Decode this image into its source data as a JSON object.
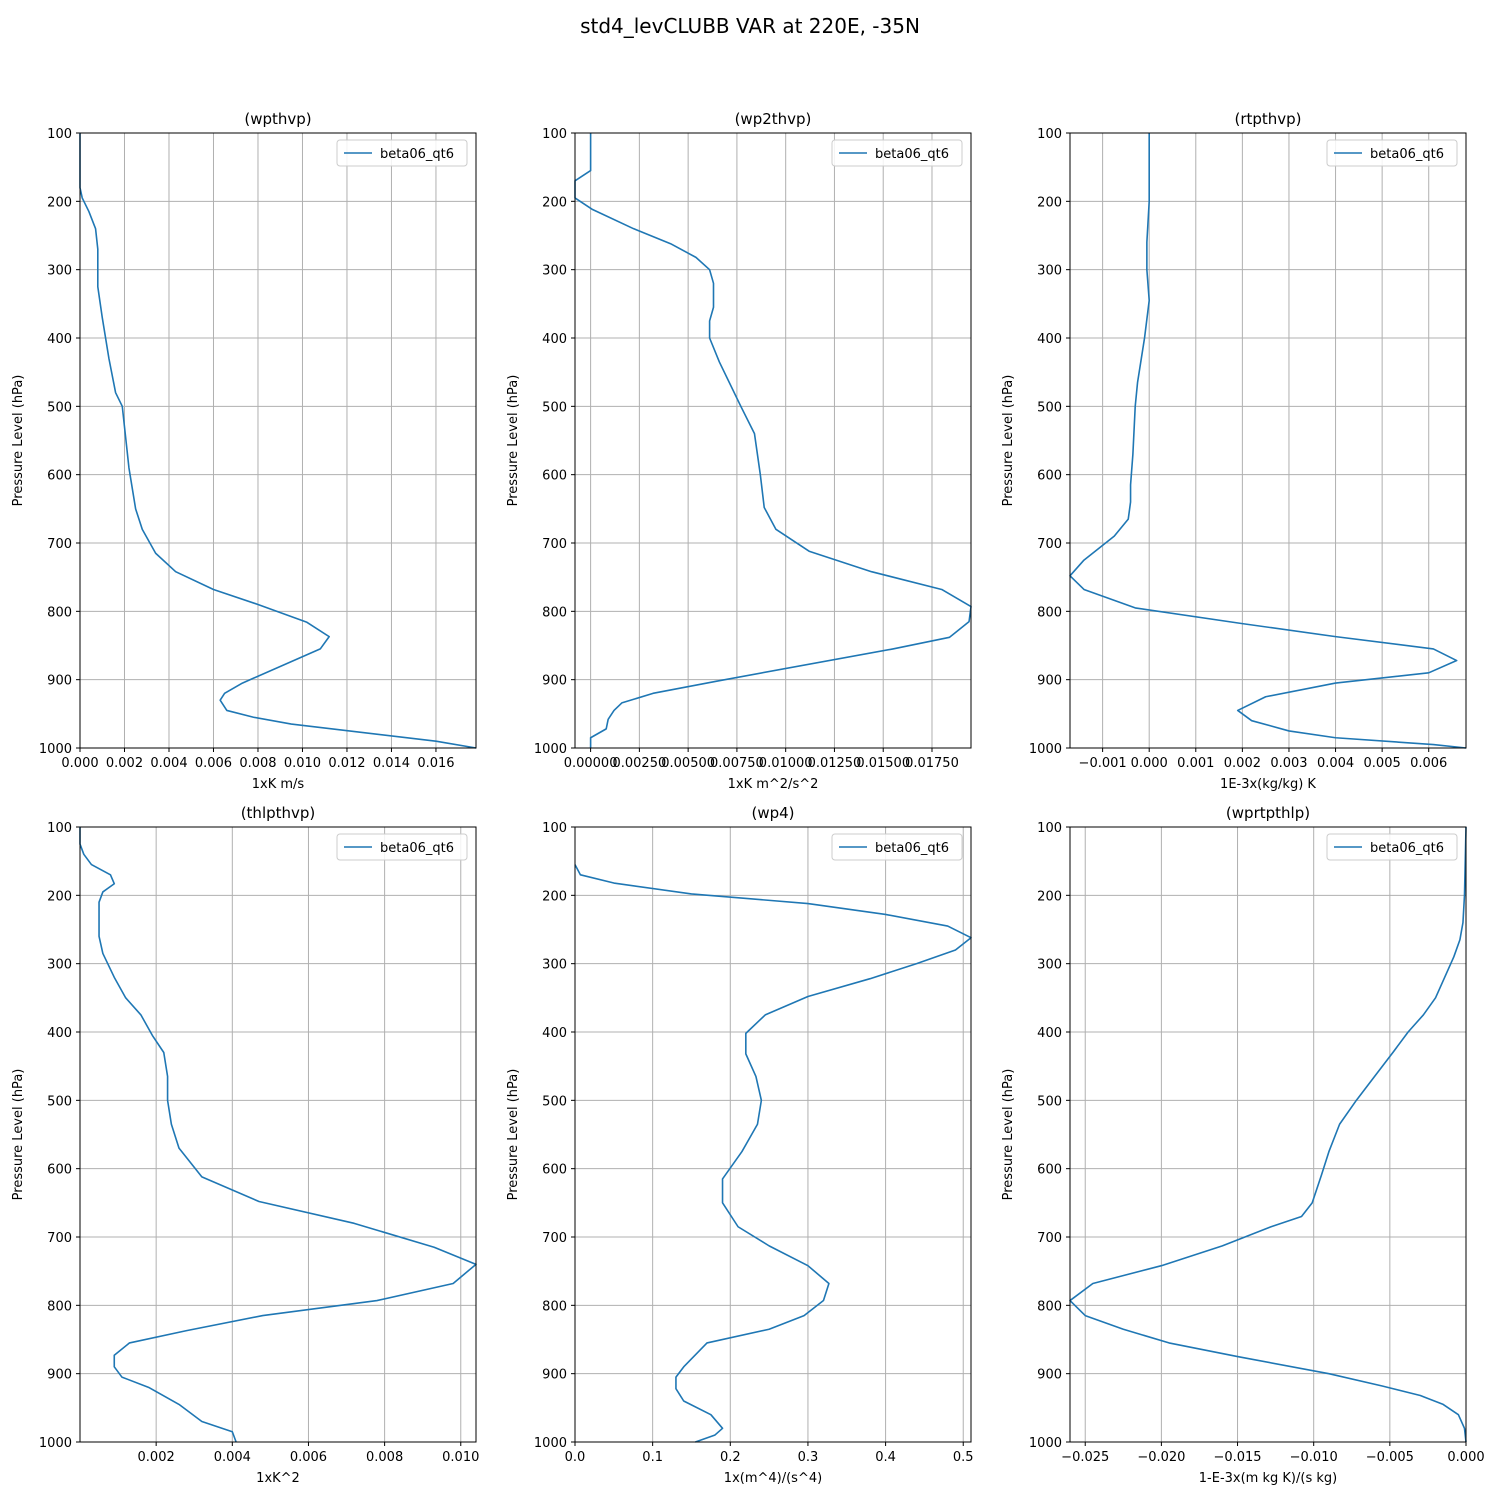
{
  "figure": {
    "title": "std4_levCLUBB VAR at 220E, -35N"
  },
  "style": {
    "line_color": "#1f77b4",
    "grid_color": "#b0b0b0"
  },
  "chart_data": [
    {
      "type": "line",
      "title": "(wpthvp)",
      "xlabel": "1xK m/s",
      "ylabel": "Pressure Level (hPa)",
      "xlim": [
        0,
        0.0178
      ],
      "ylim": [
        1000,
        100
      ],
      "y_inverted": true,
      "grid": true,
      "legend_placement": "top-right",
      "xticks": [
        {
          "v": 0.0,
          "label": "0.000"
        },
        {
          "v": 0.002,
          "label": "0.002"
        },
        {
          "v": 0.004,
          "label": "0.004"
        },
        {
          "v": 0.006,
          "label": "0.006"
        },
        {
          "v": 0.008,
          "label": "0.008"
        },
        {
          "v": 0.01,
          "label": "0.010"
        },
        {
          "v": 0.012,
          "label": "0.012"
        },
        {
          "v": 0.014,
          "label": "0.014"
        },
        {
          "v": 0.016,
          "label": "0.016"
        }
      ],
      "yticks": [
        {
          "v": 100,
          "label": "100"
        },
        {
          "v": 200,
          "label": "200"
        },
        {
          "v": 300,
          "label": "300"
        },
        {
          "v": 400,
          "label": "400"
        },
        {
          "v": 500,
          "label": "500"
        },
        {
          "v": 600,
          "label": "600"
        },
        {
          "v": 700,
          "label": "700"
        },
        {
          "v": 800,
          "label": "800"
        },
        {
          "v": 900,
          "label": "900"
        },
        {
          "v": 1000,
          "label": "1000"
        }
      ],
      "series": [
        {
          "name": "beta06_qt6",
          "x": [
            0.0,
            0.0,
            0.0,
            0.0,
            0.0001,
            0.0004,
            0.0007,
            0.0008,
            0.0008,
            0.0008,
            0.001,
            0.0013,
            0.0016,
            0.0019,
            0.002,
            0.0021,
            0.0022,
            0.0025,
            0.0028,
            0.0034,
            0.0043,
            0.006,
            0.008,
            0.0102,
            0.0112,
            0.0108,
            0.0073,
            0.0065,
            0.0063,
            0.0066,
            0.0078,
            0.0095,
            0.016,
            0.0178
          ],
          "y": [
            100,
            130,
            160,
            180,
            195,
            215,
            240,
            270,
            300,
            325,
            370,
            430,
            480,
            500,
            530,
            560,
            590,
            650,
            680,
            715,
            742,
            768,
            790,
            816,
            837,
            855,
            905,
            920,
            930,
            945,
            955,
            965,
            990,
            1000
          ]
        }
      ]
    },
    {
      "type": "line",
      "title": "(wp2thvp)",
      "xlabel": "1xK m^2/s^2",
      "ylabel": "Pressure Level (hPa)",
      "xlim": [
        -0.0008,
        0.0195
      ],
      "ylim": [
        1000,
        100
      ],
      "y_inverted": true,
      "grid": true,
      "legend_placement": "top-right",
      "xticks": [
        {
          "v": 0.0,
          "label": "0.00000"
        },
        {
          "v": 0.0025,
          "label": "0.00250"
        },
        {
          "v": 0.005,
          "label": "0.00500"
        },
        {
          "v": 0.0075,
          "label": "0.00750"
        },
        {
          "v": 0.01,
          "label": "0.01000"
        },
        {
          "v": 0.0125,
          "label": "0.01250"
        },
        {
          "v": 0.015,
          "label": "0.01500"
        },
        {
          "v": 0.0175,
          "label": "0.01750"
        }
      ],
      "yticks": [
        {
          "v": 100,
          "label": "100"
        },
        {
          "v": 200,
          "label": "200"
        },
        {
          "v": 300,
          "label": "300"
        },
        {
          "v": 400,
          "label": "400"
        },
        {
          "v": 500,
          "label": "500"
        },
        {
          "v": 600,
          "label": "600"
        },
        {
          "v": 700,
          "label": "700"
        },
        {
          "v": 800,
          "label": "800"
        },
        {
          "v": 900,
          "label": "900"
        },
        {
          "v": 1000,
          "label": "1000"
        }
      ],
      "series": [
        {
          "name": "beta06_qt6",
          "x": [
            0.0,
            0.0,
            0.0,
            -0.0008,
            -0.0008,
            0.0001,
            0.0022,
            0.0041,
            0.0054,
            0.0061,
            0.0063,
            0.0063,
            0.0061,
            0.0061,
            0.0066,
            0.0077,
            0.0084,
            0.0087,
            0.0089,
            0.0095,
            0.0112,
            0.0144,
            0.018,
            0.0195,
            0.0194,
            0.0184,
            0.0155,
            0.0065,
            0.0032,
            0.0016,
            0.0012,
            0.0009,
            0.0008,
            0.0,
            0.0
          ],
          "y": [
            100,
            130,
            155,
            170,
            195,
            212,
            240,
            262,
            282,
            300,
            320,
            355,
            375,
            400,
            435,
            500,
            540,
            600,
            648,
            680,
            712,
            742,
            768,
            793,
            815,
            838,
            855,
            902,
            920,
            934,
            945,
            958,
            972,
            985,
            1000
          ]
        }
      ]
    },
    {
      "type": "line",
      "title": "(rtpthvp)",
      "xlabel": "1E-3x(kg/kg) K",
      "ylabel": "Pressure Level (hPa)",
      "xlim": [
        -0.0017,
        0.0068
      ],
      "ylim": [
        1000,
        100
      ],
      "y_inverted": true,
      "grid": true,
      "legend_placement": "top-right",
      "xticks": [
        {
          "v": -0.001,
          "label": "−0.001"
        },
        {
          "v": 0.0,
          "label": "0.000"
        },
        {
          "v": 0.001,
          "label": "0.001"
        },
        {
          "v": 0.002,
          "label": "0.002"
        },
        {
          "v": 0.003,
          "label": "0.003"
        },
        {
          "v": 0.004,
          "label": "0.004"
        },
        {
          "v": 0.005,
          "label": "0.005"
        },
        {
          "v": 0.006,
          "label": "0.006"
        }
      ],
      "yticks": [
        {
          "v": 100,
          "label": "100"
        },
        {
          "v": 200,
          "label": "200"
        },
        {
          "v": 300,
          "label": "300"
        },
        {
          "v": 400,
          "label": "400"
        },
        {
          "v": 500,
          "label": "500"
        },
        {
          "v": 600,
          "label": "600"
        },
        {
          "v": 700,
          "label": "700"
        },
        {
          "v": 800,
          "label": "800"
        },
        {
          "v": 900,
          "label": "900"
        },
        {
          "v": 1000,
          "label": "1000"
        }
      ],
      "series": [
        {
          "name": "beta06_qt6",
          "x": [
            0.0,
            0.0,
            -5e-05,
            -5e-05,
            0.0,
            -0.0001,
            -0.00025,
            -0.0003,
            -0.00035,
            -0.0004,
            -0.0004,
            -0.00045,
            -0.00075,
            -0.0014,
            -0.0017,
            -0.0014,
            -0.0003,
            0.002,
            0.004,
            0.0061,
            0.0066,
            0.006,
            0.004,
            0.0025,
            0.0019,
            0.0022,
            0.003,
            0.004,
            0.0061,
            0.0068
          ],
          "y": [
            100,
            200,
            260,
            300,
            345,
            400,
            465,
            500,
            570,
            615,
            640,
            665,
            690,
            725,
            748,
            768,
            795,
            818,
            837,
            855,
            872,
            890,
            905,
            925,
            945,
            960,
            975,
            985,
            995,
            1000
          ]
        }
      ]
    },
    {
      "type": "line",
      "title": "(thlpthvp)",
      "xlabel": "1xK^2",
      "ylabel": "Pressure Level (hPa)",
      "xlim": [
        0,
        0.0104
      ],
      "ylim": [
        1000,
        100
      ],
      "y_inverted": true,
      "grid": true,
      "legend_placement": "top-right",
      "xticks": [
        {
          "v": 0.002,
          "label": "0.002"
        },
        {
          "v": 0.004,
          "label": "0.004"
        },
        {
          "v": 0.006,
          "label": "0.006"
        },
        {
          "v": 0.008,
          "label": "0.008"
        },
        {
          "v": 0.01,
          "label": "0.010"
        }
      ],
      "yticks": [
        {
          "v": 100,
          "label": "100"
        },
        {
          "v": 200,
          "label": "200"
        },
        {
          "v": 300,
          "label": "300"
        },
        {
          "v": 400,
          "label": "400"
        },
        {
          "v": 500,
          "label": "500"
        },
        {
          "v": 600,
          "label": "600"
        },
        {
          "v": 700,
          "label": "700"
        },
        {
          "v": 800,
          "label": "800"
        },
        {
          "v": 900,
          "label": "900"
        },
        {
          "v": 1000,
          "label": "1000"
        }
      ],
      "series": [
        {
          "name": "beta06_qt6",
          "x": [
            0.0,
            0.0,
            0.0001,
            0.0003,
            0.0008,
            0.0009,
            0.0006,
            0.0005,
            0.0005,
            0.0005,
            0.0006,
            0.0009,
            0.0012,
            0.0016,
            0.0019,
            0.0022,
            0.0023,
            0.0023,
            0.0024,
            0.0026,
            0.0032,
            0.0047,
            0.0072,
            0.0093,
            0.0104,
            0.0098,
            0.0078,
            0.0048,
            0.0028,
            0.0013,
            0.0009,
            0.0009,
            0.0011,
            0.0018,
            0.0026,
            0.0032,
            0.004,
            0.0041
          ],
          "y": [
            100,
            125,
            140,
            155,
            170,
            183,
            195,
            210,
            230,
            260,
            285,
            320,
            350,
            375,
            405,
            430,
            465,
            500,
            535,
            570,
            612,
            648,
            680,
            715,
            740,
            768,
            793,
            815,
            837,
            855,
            873,
            890,
            905,
            920,
            945,
            970,
            985,
            1000
          ]
        }
      ]
    },
    {
      "type": "line",
      "title": "(wp4)",
      "xlabel": "1x(m^4)/(s^4)",
      "ylabel": "Pressure Level (hPa)",
      "xlim": [
        0,
        0.51
      ],
      "ylim": [
        1000,
        100
      ],
      "y_inverted": true,
      "grid": true,
      "legend_placement": "top-right",
      "xticks": [
        {
          "v": 0.0,
          "label": "0.0"
        },
        {
          "v": 0.1,
          "label": "0.1"
        },
        {
          "v": 0.2,
          "label": "0.2"
        },
        {
          "v": 0.3,
          "label": "0.3"
        },
        {
          "v": 0.4,
          "label": "0.4"
        },
        {
          "v": 0.5,
          "label": "0.5"
        }
      ],
      "yticks": [
        {
          "v": 100,
          "label": "100"
        },
        {
          "v": 200,
          "label": "200"
        },
        {
          "v": 300,
          "label": "300"
        },
        {
          "v": 400,
          "label": "400"
        },
        {
          "v": 500,
          "label": "500"
        },
        {
          "v": 600,
          "label": "600"
        },
        {
          "v": 700,
          "label": "700"
        },
        {
          "v": 800,
          "label": "800"
        },
        {
          "v": 900,
          "label": "900"
        },
        {
          "v": 1000,
          "label": "1000"
        }
      ],
      "series": [
        {
          "name": "beta06_qt6",
          "x": [
            0.0,
            0.007,
            0.05,
            0.15,
            0.3,
            0.4,
            0.48,
            0.51,
            0.49,
            0.44,
            0.38,
            0.3,
            0.245,
            0.22,
            0.22,
            0.233,
            0.24,
            0.235,
            0.215,
            0.19,
            0.19,
            0.21,
            0.25,
            0.3,
            0.327,
            0.32,
            0.295,
            0.25,
            0.17,
            0.14,
            0.13,
            0.13,
            0.14,
            0.175,
            0.19,
            0.18,
            0.155
          ],
          "y": [
            155,
            170,
            182,
            198,
            212,
            228,
            245,
            262,
            280,
            300,
            322,
            348,
            375,
            402,
            432,
            465,
            500,
            535,
            575,
            615,
            650,
            685,
            713,
            742,
            768,
            793,
            815,
            835,
            855,
            890,
            905,
            922,
            940,
            960,
            980,
            990,
            1000
          ]
        }
      ]
    },
    {
      "type": "line",
      "title": "(wprtpthlp)",
      "xlabel": "1-E-3x(m kg K)/(s kg)",
      "ylabel": "Pressure Level (hPa)",
      "xlim": [
        -0.026,
        0.0
      ],
      "ylim": [
        1000,
        100
      ],
      "y_inverted": true,
      "grid": true,
      "legend_placement": "top-right",
      "xticks": [
        {
          "v": -0.025,
          "label": "−0.025"
        },
        {
          "v": -0.02,
          "label": "−0.020"
        },
        {
          "v": -0.015,
          "label": "−0.015"
        },
        {
          "v": -0.01,
          "label": "−0.010"
        },
        {
          "v": -0.005,
          "label": "−0.005"
        },
        {
          "v": 0.0,
          "label": "0.000"
        }
      ],
      "yticks": [
        {
          "v": 100,
          "label": "100"
        },
        {
          "v": 200,
          "label": "200"
        },
        {
          "v": 300,
          "label": "300"
        },
        {
          "v": 400,
          "label": "400"
        },
        {
          "v": 500,
          "label": "500"
        },
        {
          "v": 600,
          "label": "600"
        },
        {
          "v": 700,
          "label": "700"
        },
        {
          "v": 800,
          "label": "800"
        },
        {
          "v": 900,
          "label": "900"
        },
        {
          "v": 1000,
          "label": "1000"
        }
      ],
      "series": [
        {
          "name": "beta06_qt6",
          "x": [
            0.0,
            -0.0001,
            -0.0002,
            -0.0004,
            -0.0008,
            -0.0014,
            -0.002,
            -0.0028,
            -0.0038,
            -0.0048,
            -0.006,
            -0.0072,
            -0.0083,
            -0.009,
            -0.0095,
            -0.0101,
            -0.0108,
            -0.0128,
            -0.016,
            -0.02,
            -0.0245,
            -0.026,
            -0.025,
            -0.0225,
            -0.0195,
            -0.015,
            -0.009,
            -0.0055,
            -0.003,
            -0.0015,
            -0.0005,
            -0.0001,
            0.0
          ],
          "y": [
            100,
            200,
            240,
            265,
            290,
            320,
            350,
            375,
            400,
            430,
            465,
            500,
            535,
            575,
            610,
            650,
            670,
            685,
            713,
            742,
            768,
            793,
            815,
            835,
            855,
            875,
            900,
            918,
            932,
            945,
            960,
            980,
            1000
          ]
        }
      ]
    }
  ]
}
